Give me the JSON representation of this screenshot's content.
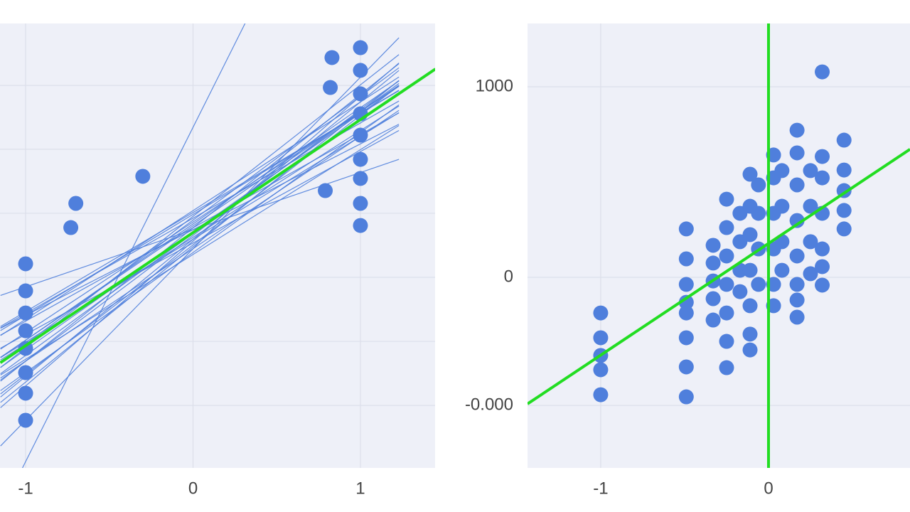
{
  "chart_data": [
    {
      "type": "scatter",
      "xlim": [
        -1.153,
        1.446
      ],
      "ylim": [
        -1000,
        1332
      ],
      "xticks": [
        -1,
        0,
        1
      ],
      "yticks": [
        -672,
        -336,
        0,
        336,
        672,
        1007
      ],
      "ytick_labels": false,
      "grid": true,
      "color": "#4f7fdc",
      "fit_color": "#22dd22",
      "x": [
        0.83,
        1.0,
        1.0,
        0.82,
        1.0,
        1.0,
        1.0,
        1.0,
        1.0,
        0.79,
        1.0,
        1.0,
        -0.3,
        -0.7,
        -0.73,
        -1.0,
        -1.0,
        -1.0,
        -1.0,
        -1.0,
        -1.0,
        -1.0,
        -1.0
      ],
      "y": [
        1153,
        1205,
        1086,
        996,
        963,
        858,
        746,
        619,
        519,
        455,
        388,
        272,
        530,
        388,
        261,
        71,
        -71,
        -187,
        -280,
        -373,
        -500,
        -608,
        -750
      ],
      "bootstrap_lines": {
        "x_range": [
          -1.15,
          1.23
        ],
        "slopes": [
          1754,
          620,
          560,
          700,
          480,
          650,
          590,
          530,
          720,
          610,
          450,
          680,
          570,
          640,
          500,
          760,
          600,
          550,
          660,
          520,
          710,
          580,
          630,
          490,
          690,
          540,
          300,
          900
        ],
        "intercepts": [
          787,
          240,
          210,
          260,
          180,
          300,
          150,
          330,
          200,
          280,
          250,
          170,
          350,
          230,
          310,
          190,
          270,
          120,
          220,
          340,
          160,
          290,
          130,
          260,
          320,
          200,
          250,
          150
        ]
      },
      "fit_line": {
        "x": [
          -1.151,
          1.448
        ],
        "y": [
          -448,
          1093
        ]
      }
    },
    {
      "type": "scatter",
      "xlim": [
        -1.436,
        0.843
      ],
      "ylim": [
        -1000,
        1332
      ],
      "xticks": [
        -1,
        0
      ],
      "yticks": [
        {
          "value": -672,
          "label": "-0.000"
        },
        0,
        1000
      ],
      "ytick_labels": true,
      "grid": true,
      "color": "#4f7fdc",
      "fit_color": "#22dd22",
      "x": [
        -1,
        -1,
        -1,
        -1,
        -1,
        -0.49,
        -0.49,
        -0.49,
        -0.49,
        -0.49,
        -0.49,
        -0.49,
        -0.49,
        -0.33,
        -0.33,
        -0.33,
        -0.33,
        -0.33,
        -0.25,
        -0.25,
        -0.25,
        -0.25,
        -0.25,
        -0.25,
        -0.25,
        -0.17,
        -0.17,
        -0.17,
        -0.17,
        -0.11,
        -0.11,
        -0.11,
        -0.11,
        -0.11,
        -0.11,
        -0.11,
        -0.06,
        -0.06,
        -0.06,
        -0.06,
        0.03,
        0.03,
        0.03,
        0.03,
        0.03,
        0.03,
        0.08,
        0.08,
        0.08,
        0.08,
        0.17,
        0.17,
        0.17,
        0.17,
        0.17,
        0.17,
        0.17,
        0.17,
        0.25,
        0.25,
        0.25,
        0.25,
        0.32,
        0.32,
        0.32,
        0.32,
        0.32,
        0.32,
        0.32,
        0.45,
        0.45,
        0.45,
        0.45,
        0.45
      ],
      "y": [
        -187,
        -317,
        -410,
        -485,
        -616,
        254,
        97,
        -37,
        -131,
        -187,
        -317,
        -470,
        -627,
        168,
        75,
        -19,
        -112,
        -224,
        410,
        261,
        112,
        -37,
        -187,
        -336,
        -474,
        336,
        187,
        37,
        -75,
        541,
        373,
        224,
        37,
        -149,
        -298,
        -381,
        485,
        336,
        149,
        -37,
        642,
        522,
        336,
        149,
        -37,
        -149,
        560,
        373,
        187,
        37,
        772,
        653,
        485,
        298,
        112,
        -37,
        -119,
        -209,
        560,
        373,
        187,
        19,
        1078,
        634,
        522,
        336,
        149,
        56,
        -41,
        720,
        563,
        455,
        351,
        254
      ],
      "fit_line": {
        "x": [
          -1.436,
          0.843
        ],
        "y": [
          -664,
          672
        ]
      },
      "vline_x": 0
    }
  ]
}
